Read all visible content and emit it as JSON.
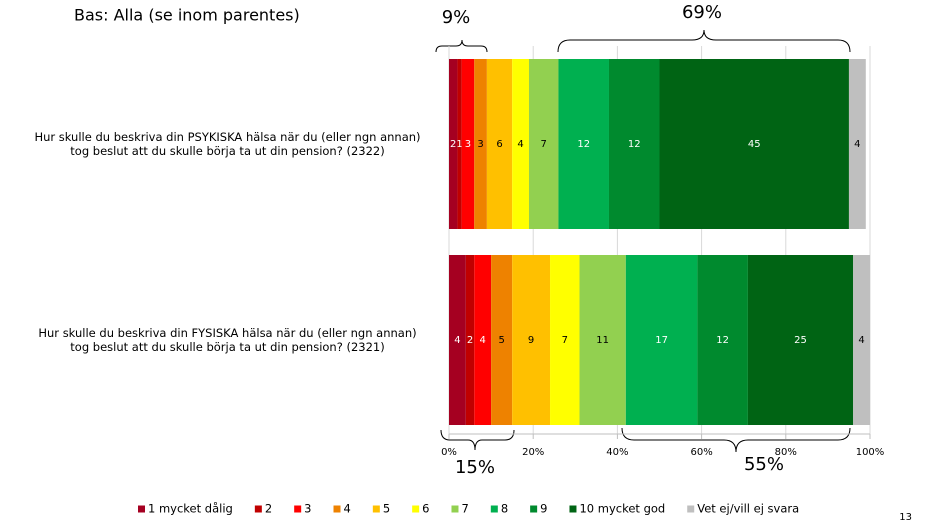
{
  "chart_data": {
    "type": "stacked-barh",
    "note": "Bas: Alla (se inom parentes)",
    "page_number": "13",
    "annotations": [
      "9%",
      "69%",
      "15%",
      "55%"
    ],
    "categories": [
      "Hur skulle du beskriva din PSYKISKA hälsa när du (eller ngn annan)\ntog beslut att du skulle börja ta ut din pension? (2322)",
      "Hur skulle du beskriva din FYSISKA hälsa när du (eller ngn annan)\ntog beslut att du skulle börja ta ut din pension? (2321)"
    ],
    "series": [
      {
        "name": "1 mycket dålig",
        "color": "#a50021",
        "values": [
          2,
          4
        ]
      },
      {
        "name": "2",
        "color": "#c00000",
        "values": [
          1,
          2
        ]
      },
      {
        "name": "3",
        "color": "#ff0000",
        "values": [
          3,
          4
        ]
      },
      {
        "name": "4",
        "color": "#ee8200",
        "values": [
          3,
          5
        ]
      },
      {
        "name": "5",
        "color": "#ffc000",
        "values": [
          6,
          9
        ]
      },
      {
        "name": "6",
        "color": "#ffff00",
        "values": [
          4,
          7
        ]
      },
      {
        "name": "7",
        "color": "#92d050",
        "values": [
          7,
          11
        ]
      },
      {
        "name": "8",
        "color": "#00b050",
        "values": [
          12,
          17
        ]
      },
      {
        "name": "9",
        "color": "#008a2e",
        "values": [
          12,
          12
        ]
      },
      {
        "name": "10 mycket god",
        "color": "#006414",
        "values": [
          45,
          25
        ]
      },
      {
        "name": "Vet ej/vill ej svara",
        "color": "#bfbfbf",
        "values": [
          4,
          4
        ]
      }
    ],
    "xlim": [
      0,
      100
    ],
    "xticks": [
      {
        "value": 0,
        "label": "0%"
      },
      {
        "value": 20,
        "label": "20%"
      },
      {
        "value": 40,
        "label": "40%"
      },
      {
        "value": 60,
        "label": "60%"
      },
      {
        "value": 80,
        "label": "80%"
      },
      {
        "value": 100,
        "label": "100%"
      }
    ],
    "grid": true
  }
}
